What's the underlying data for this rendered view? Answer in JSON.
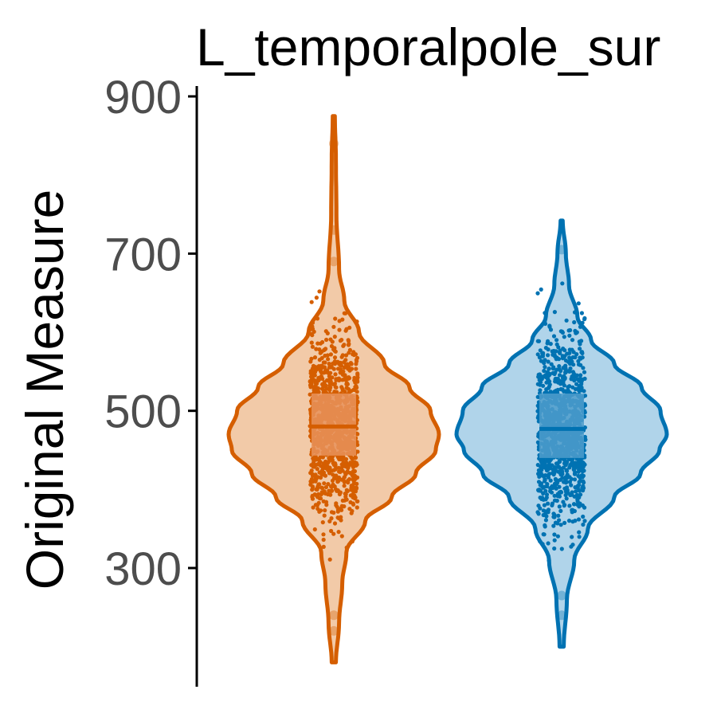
{
  "chart_data": {
    "type": "violin",
    "title": "L_temporalpole_sur",
    "xlabel": "",
    "ylabel": "Original Measure",
    "ylim": [
      160,
      915
    ],
    "yticks": [
      300,
      500,
      700,
      900
    ],
    "ytick_labels": [
      "300",
      "500",
      "700",
      "900"
    ],
    "grid": false,
    "legend": "none",
    "series": [
      {
        "color": "#D55E00",
        "fill": "#F2CAA8",
        "box_fill": "#E8925A",
        "min": 180,
        "max": 875,
        "q1": 443,
        "median": 480,
        "q3": 522,
        "density": [
          [
            180,
            0.02
          ],
          [
            230,
            0.05
          ],
          [
            280,
            0.08
          ],
          [
            320,
            0.12
          ],
          [
            360,
            0.3
          ],
          [
            390,
            0.55
          ],
          [
            420,
            0.78
          ],
          [
            450,
            0.97
          ],
          [
            470,
            1.0
          ],
          [
            500,
            0.92
          ],
          [
            530,
            0.72
          ],
          [
            560,
            0.48
          ],
          [
            600,
            0.24
          ],
          [
            640,
            0.1
          ],
          [
            680,
            0.05
          ],
          [
            750,
            0.025
          ],
          [
            820,
            0.02
          ],
          [
            875,
            0.01
          ]
        ],
        "outliers": [
          840,
          730,
          690,
          240,
          220
        ]
      },
      {
        "color": "#0072B2",
        "fill": "#B0D4EA",
        "box_fill": "#4E9CCB",
        "min": 200,
        "max": 742,
        "q1": 440,
        "median": 477,
        "q3": 522,
        "density": [
          [
            200,
            0.02
          ],
          [
            260,
            0.05
          ],
          [
            310,
            0.12
          ],
          [
            350,
            0.25
          ],
          [
            390,
            0.5
          ],
          [
            420,
            0.75
          ],
          [
            450,
            0.93
          ],
          [
            470,
            1.0
          ],
          [
            500,
            0.94
          ],
          [
            530,
            0.76
          ],
          [
            560,
            0.5
          ],
          [
            590,
            0.28
          ],
          [
            620,
            0.15
          ],
          [
            660,
            0.07
          ],
          [
            700,
            0.04
          ],
          [
            742,
            0.01
          ]
        ],
        "outliers": [
          705,
          265,
          240
        ]
      }
    ]
  }
}
